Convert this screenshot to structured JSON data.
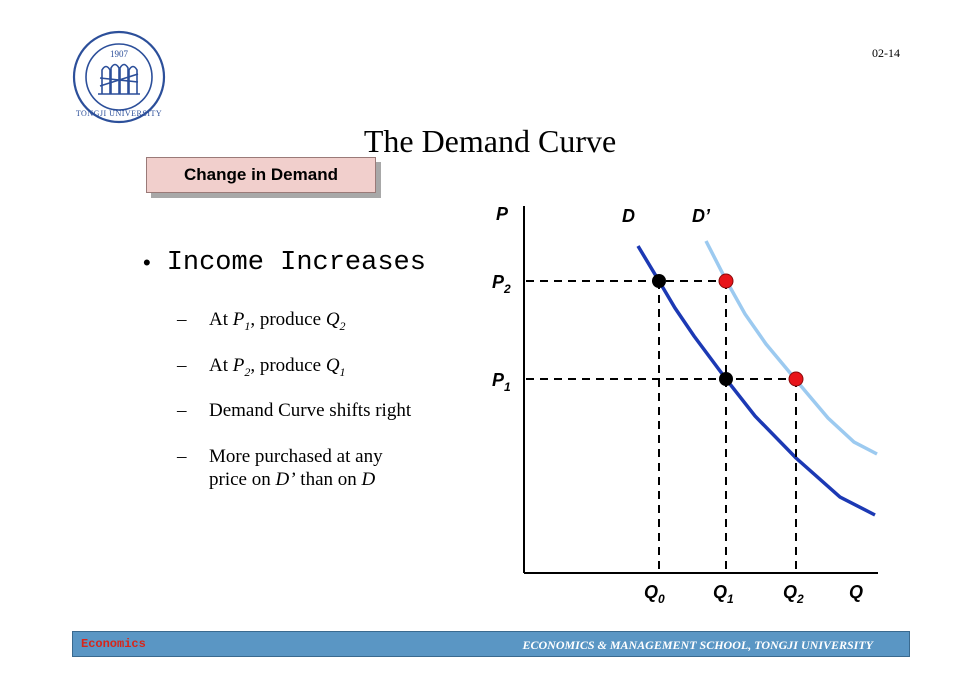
{
  "slide_number": "02-14",
  "title": "The Demand Curve",
  "tag_label": "Change in Demand",
  "logo": {
    "year": "1907",
    "name": "TONGJI UNIVERSITY"
  },
  "bullet_main": "Income Increases",
  "subbullets": [
    {
      "parts": [
        "At ",
        "P",
        "1",
        ", produce ",
        "Q",
        "2"
      ]
    },
    {
      "parts": [
        "At ",
        "P",
        "2",
        ", produce ",
        "Q",
        "1"
      ]
    },
    {
      "text": "Demand Curve shifts right"
    },
    {
      "line1": "More purchased at any",
      "line2a": "price on ",
      "line2b": "D’",
      "line2c": "  than on ",
      "line2d": "D"
    }
  ],
  "chart_data": {
    "type": "line",
    "x_axis_label": "Q",
    "y_axis_label": "P",
    "curve_labels": {
      "D": "D",
      "Dprime": "D’"
    },
    "price_labels": [
      {
        "main": "P",
        "sub": "2"
      },
      {
        "main": "P",
        "sub": "1"
      }
    ],
    "quantity_labels": [
      {
        "main": "Q",
        "sub": "0"
      },
      {
        "main": "Q",
        "sub": "1"
      },
      {
        "main": "Q",
        "sub": "2"
      }
    ],
    "colors": {
      "D": "#1c39b4",
      "Dprime": "#9ccaf0",
      "point_on_D": "#000000",
      "point_on_Dprime": "#e8141a"
    }
  },
  "footer": {
    "left": "Economics",
    "right": "ECONOMICS & MANAGEMENT SCHOOL, TONGJI UNIVERSITY"
  }
}
